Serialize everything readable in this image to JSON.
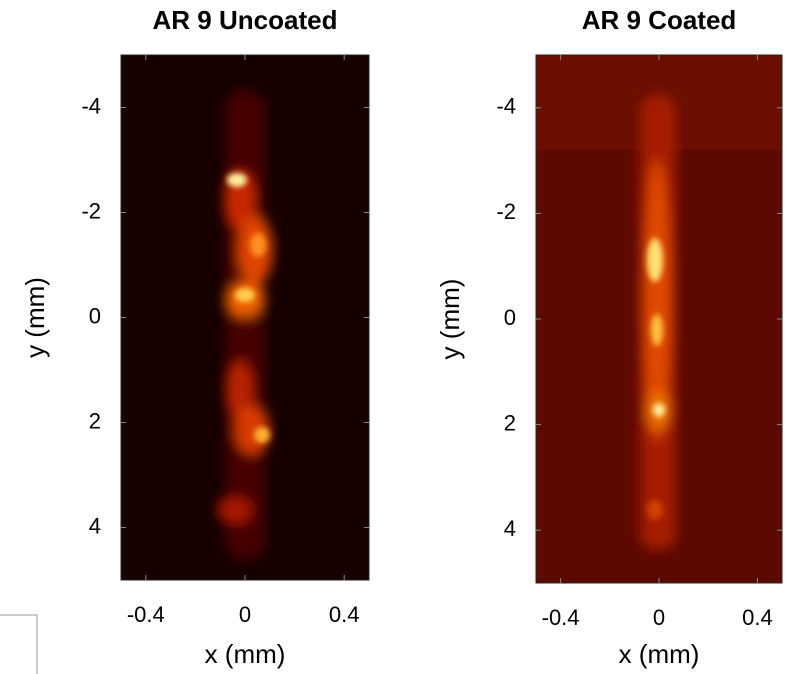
{
  "chart_data": [
    {
      "type": "image",
      "title": "AR 9 Uncoated",
      "x_label": "x (mm)",
      "y_label": "y (mm)",
      "xlim": [
        -0.5,
        0.5
      ],
      "xticks": [
        -0.4,
        0,
        0.4
      ],
      "ylim": [
        -5,
        5
      ],
      "yticks": [
        -4,
        -2,
        0,
        2,
        4
      ],
      "y_reversed": true
    },
    {
      "type": "image",
      "title": "AR 9 Coated",
      "x_label": "x (mm)",
      "y_label": "y (mm)",
      "xlim": [
        -0.5,
        0.5
      ],
      "xticks": [
        -0.4,
        0,
        0.4
      ],
      "ylim": [
        -5,
        5
      ],
      "yticks": [
        -4,
        -2,
        0,
        2,
        4
      ],
      "y_reversed": true
    }
  ]
}
